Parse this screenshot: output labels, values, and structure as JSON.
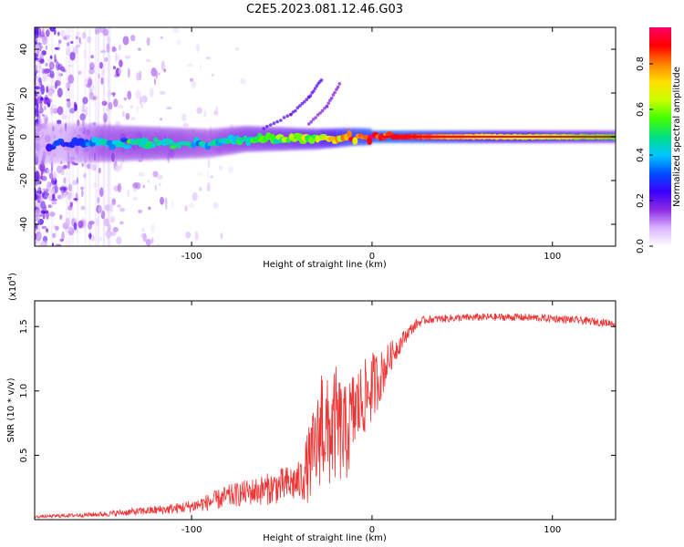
{
  "figure_title": "C2E5.2023.081.12.46.G03",
  "colors": {
    "snr_line": "#ee3333",
    "background": "#ffffff",
    "axis": "#000000"
  },
  "chart_data": [
    {
      "type": "heatmap",
      "title": "C2E5.2023.081.12.46.G03",
      "xlabel": "Height of straight line (km)",
      "ylabel": "Frequency (Hz)",
      "xlim": [
        -187,
        135
      ],
      "ylim": [
        -50,
        50
      ],
      "x_ticks": [
        {
          "value": -100,
          "label": "-100"
        },
        {
          "value": 0,
          "label": "0"
        },
        {
          "value": 100,
          "label": "100"
        }
      ],
      "y_ticks": [
        {
          "value": -40,
          "label": "-40"
        },
        {
          "value": -20,
          "label": "-20"
        },
        {
          "value": 0,
          "label": "0"
        },
        {
          "value": 20,
          "label": "20"
        },
        {
          "value": 40,
          "label": "40"
        }
      ],
      "colorbar": {
        "label": "Normalized spectral amplitude",
        "range": [
          0,
          0.96
        ],
        "ticks": [
          {
            "value": 0.0,
            "label": "0.0"
          },
          {
            "value": 0.2,
            "label": "0.2"
          },
          {
            "value": 0.4,
            "label": "0.4"
          },
          {
            "value": 0.6,
            "label": "0.6"
          },
          {
            "value": 0.8,
            "label": "0.8"
          }
        ],
        "stops": [
          "#ffffff",
          "#d9b3ff",
          "#8b2be2",
          "#3a00ff",
          "#0050ff",
          "#00c8ff",
          "#00e080",
          "#40ff00",
          "#c8ff00",
          "#ffe000",
          "#ff8000",
          "#ff0000",
          "#ff0066"
        ]
      },
      "ridge": {
        "description_points": [
          {
            "x": -170,
            "f": -3,
            "a": 0.25
          },
          {
            "x": -150,
            "f": -3,
            "a": 0.42
          },
          {
            "x": -130,
            "f": -3,
            "a": 0.45
          },
          {
            "x": -110,
            "f": -3,
            "a": 0.45
          },
          {
            "x": -90,
            "f": -3,
            "a": 0.42
          },
          {
            "x": -70,
            "f": -1,
            "a": 0.5
          },
          {
            "x": -50,
            "f": -1,
            "a": 0.55
          },
          {
            "x": -30,
            "f": -1,
            "a": 0.62
          },
          {
            "x": -10,
            "f": 0,
            "a": 0.8
          },
          {
            "x": 10,
            "f": 0,
            "a": 0.9
          },
          {
            "x": 30,
            "f": 0,
            "a": 0.82
          },
          {
            "x": 60,
            "f": 0,
            "a": 0.72
          },
          {
            "x": 100,
            "f": 0,
            "a": 0.62
          },
          {
            "x": 133,
            "f": 0,
            "a": 0.55
          }
        ],
        "harmonic_arc": [
          {
            "x": -60,
            "f": 4
          },
          {
            "x": -45,
            "f": 10
          },
          {
            "x": -35,
            "f": 18
          },
          {
            "x": -28,
            "f": 26
          }
        ],
        "harmonic_arc_2": [
          {
            "x": -35,
            "f": 6
          },
          {
            "x": -25,
            "f": 14
          },
          {
            "x": -18,
            "f": 24
          }
        ]
      }
    },
    {
      "type": "line",
      "title": "",
      "xlabel": "Height of straight line (km)",
      "ylabel": "SNR (10 * v/v)",
      "y_scale_label": "(x10",
      "y_scale_exponent": "4",
      "y_scale_close": ")",
      "xlim": [
        -187,
        135
      ],
      "ylim": [
        0,
        1.7
      ],
      "x_ticks": [
        {
          "value": -100,
          "label": "-100"
        },
        {
          "value": 0,
          "label": "0"
        },
        {
          "value": 100,
          "label": "100"
        }
      ],
      "y_ticks": [
        {
          "value": 0.5,
          "label": "0.5"
        },
        {
          "value": 1.0,
          "label": "1.0"
        },
        {
          "value": 1.5,
          "label": "1.5"
        }
      ],
      "series": [
        {
          "name": "SNR",
          "x": [
            -187,
            -170,
            -150,
            -130,
            -110,
            -100,
            -90,
            -80,
            -70,
            -60,
            -50,
            -40,
            -35,
            -30,
            -28,
            -25,
            -20,
            -15,
            -10,
            -5,
            0,
            5,
            10,
            15,
            20,
            25,
            30,
            40,
            60,
            80,
            100,
            120,
            135
          ],
          "values": [
            0.02,
            0.03,
            0.04,
            0.06,
            0.08,
            0.1,
            0.13,
            0.17,
            0.2,
            0.22,
            0.25,
            0.28,
            0.4,
            0.55,
            0.75,
            0.6,
            0.7,
            0.6,
            0.8,
            0.9,
            1.0,
            1.1,
            1.25,
            1.35,
            1.45,
            1.52,
            1.55,
            1.56,
            1.57,
            1.57,
            1.56,
            1.54,
            1.52
          ],
          "noise_amplitude": [
            0.01,
            0.015,
            0.02,
            0.03,
            0.04,
            0.05,
            0.07,
            0.09,
            0.1,
            0.12,
            0.14,
            0.16,
            0.3,
            0.4,
            0.5,
            0.45,
            0.45,
            0.4,
            0.35,
            0.3,
            0.28,
            0.2,
            0.12,
            0.08,
            0.05,
            0.04,
            0.03,
            0.03,
            0.03,
            0.03,
            0.03,
            0.03,
            0.03
          ]
        }
      ]
    }
  ]
}
